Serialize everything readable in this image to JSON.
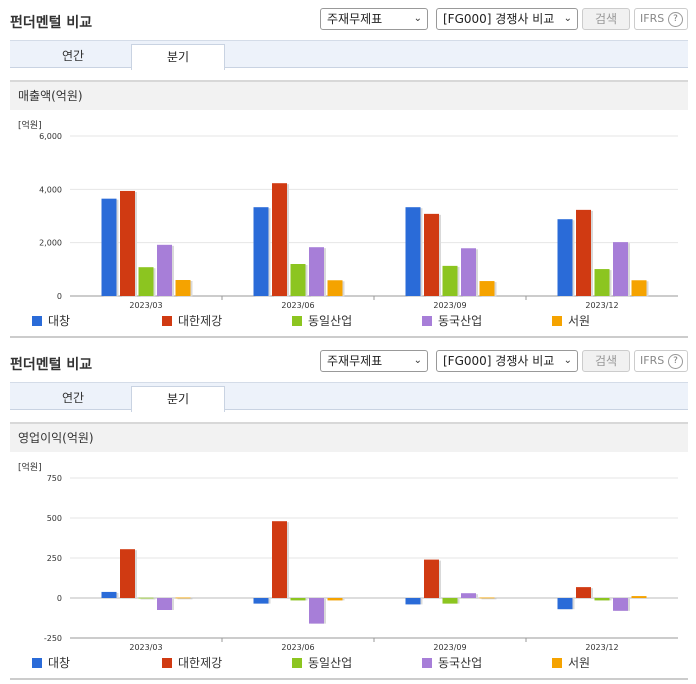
{
  "panels": [
    {
      "title": "펀더멘털 비교",
      "select1": "주재무제표",
      "select2": "[FG000] 경쟁사 비교",
      "search": "검색",
      "ifrs": "IFRS",
      "ifrs_help": "?",
      "tabs": [
        "연간",
        "분기"
      ],
      "section": "매출액(억원)",
      "unit": "[억원]"
    },
    {
      "title": "펀더멘털 비교",
      "select1": "주재무제표",
      "select2": "[FG000] 경쟁사 비교",
      "search": "검색",
      "ifrs": "IFRS",
      "ifrs_help": "?",
      "tabs": [
        "연간",
        "분기"
      ],
      "section": "영업이익(억원)",
      "unit": "[억원]"
    }
  ],
  "colors": {
    "대창": "#2a6bd8",
    "대한제강": "#d03a12",
    "동일산업": "#8cc520",
    "동국산업": "#a77ed8",
    "서원": "#f5a300"
  },
  "chart_data": [
    {
      "type": "bar",
      "title": "매출액(억원)",
      "ylabel": "[억원]",
      "categories": [
        "2023/03",
        "2023/06",
        "2023/09",
        "2023/12"
      ],
      "ylim": [
        0,
        6000
      ],
      "yticks": [
        0,
        2000,
        4000,
        6000
      ],
      "ytick_labels": [
        "0",
        "2,000",
        "4,000",
        "6,000"
      ],
      "grid": true,
      "legend": "bottom",
      "series": [
        {
          "name": "대창",
          "values": [
            3650,
            3330,
            3330,
            2880
          ]
        },
        {
          "name": "대한제강",
          "values": [
            3940,
            4230,
            3080,
            3230
          ]
        },
        {
          "name": "동일산업",
          "values": [
            1080,
            1200,
            1130,
            1010
          ]
        },
        {
          "name": "동국산업",
          "values": [
            1920,
            1830,
            1790,
            2020
          ]
        },
        {
          "name": "서원",
          "values": [
            600,
            590,
            560,
            590
          ]
        }
      ]
    },
    {
      "type": "bar",
      "title": "영업이익(억원)",
      "ylabel": "[억원]",
      "categories": [
        "2023/03",
        "2023/06",
        "2023/09",
        "2023/12"
      ],
      "ylim": [
        -250,
        750
      ],
      "yticks": [
        -250,
        0,
        250,
        500,
        750
      ],
      "ytick_labels": [
        "-250",
        "0",
        "250",
        "500",
        "750"
      ],
      "grid": true,
      "legend": "bottom",
      "series": [
        {
          "name": "대창",
          "values": [
            38,
            -35,
            -40,
            -70
          ]
        },
        {
          "name": "대한제강",
          "values": [
            305,
            480,
            240,
            68
          ]
        },
        {
          "name": "동일산업",
          "values": [
            2,
            -15,
            -35,
            -15
          ]
        },
        {
          "name": "동국산업",
          "values": [
            -75,
            -160,
            30,
            -80
          ]
        },
        {
          "name": "서원",
          "values": [
            3,
            -15,
            3,
            12
          ]
        }
      ]
    }
  ]
}
